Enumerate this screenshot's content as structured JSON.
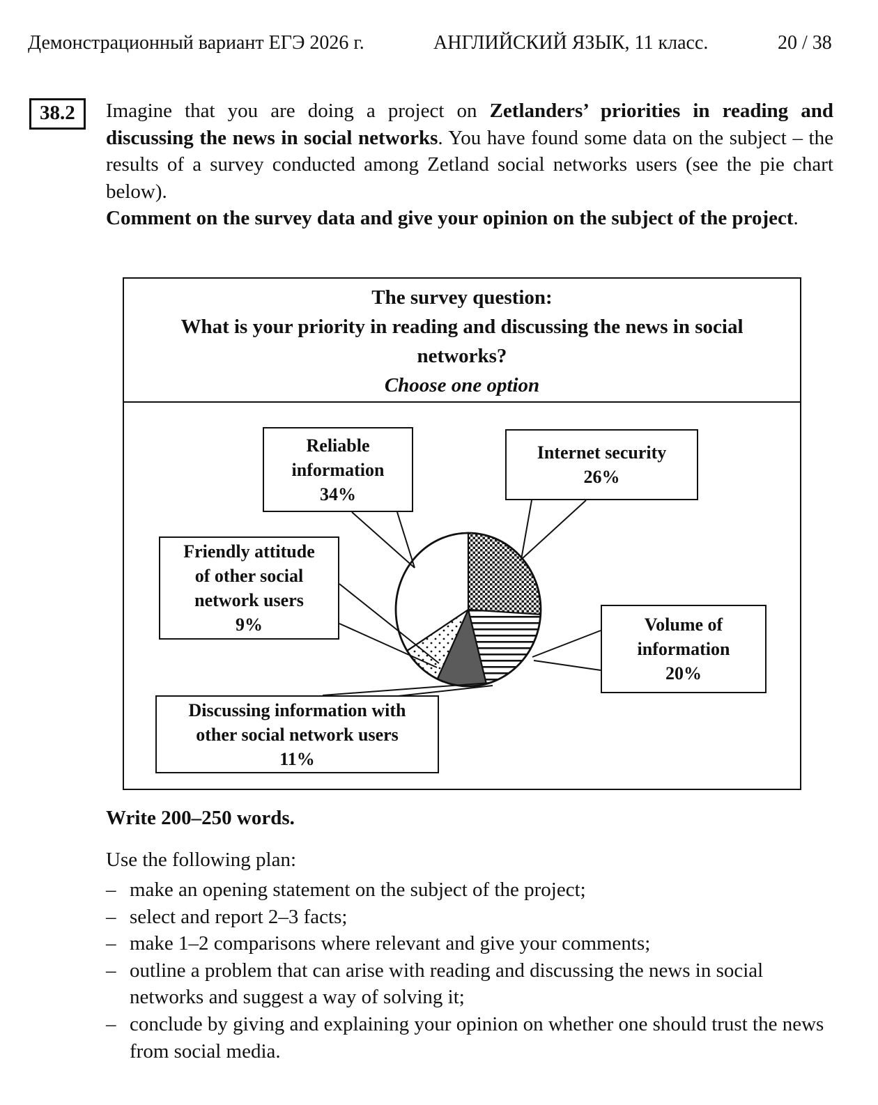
{
  "header": {
    "left": "Демонстрационный вариант ЕГЭ 2026 г.",
    "center": "АНГЛИЙСКИЙ ЯЗЫК, 11 класс.",
    "page": "20 / 38"
  },
  "task": {
    "number": "38.2",
    "intro": {
      "p1a": "Imagine that you are doing a project on ",
      "p1b": "Zetlanders’ priorities in reading and discussing the news in social networks",
      "p1c": ". You have found some data on the subject – the results of a survey conducted among Zetland social networks users (see the pie chart below).",
      "p2a": "Comment on the survey data and give your opinion on the subject of the project",
      "p2b": "."
    },
    "write_instruction": "Write 200–250 words.",
    "plan": {
      "lead": "Use the following plan:",
      "bullet": "–",
      "items": [
        "make an opening statement on the subject of the project;",
        "select and report 2–3 facts;",
        "make 1–2 comparisons where relevant and give your comments;",
        "outline a problem that can arise with reading and discussing the news in social networks and suggest a way of solving it;",
        "conclude by giving and explaining your opinion on whether one should trust the news from social media."
      ]
    }
  },
  "chart_data": {
    "type": "pie",
    "title": "The survey question:",
    "question": "What is your priority in reading and discussing the news in social networks?",
    "note": "Choose one option",
    "start_angle": "12 o'clock",
    "direction": "clockwise",
    "legend_position": "callout-boxes",
    "categories": [
      "Internet security",
      "Volume of information",
      "Discussing information with other social network users",
      "Friendly attitude of other social network users",
      "Reliable information"
    ],
    "values": [
      26,
      20,
      11,
      9,
      34
    ],
    "slices": [
      {
        "id": "internet-security",
        "label": "Internet security",
        "value": 26,
        "fill_style": "checkerboard"
      },
      {
        "id": "volume-of-information",
        "label": "Volume of information",
        "value": 20,
        "fill_style": "horizontal-stripes"
      },
      {
        "id": "discussing-information",
        "label": "Discussing information with other social network users",
        "value": 11,
        "fill_style": "solid-gray"
      },
      {
        "id": "friendly-attitude",
        "label": "Friendly attitude of other social network users",
        "value": 9,
        "fill_style": "dotted"
      },
      {
        "id": "reliable-information",
        "label": "Reliable information",
        "value": 34,
        "fill_style": "plain"
      }
    ],
    "colors": {
      "dark_gray": "#5b5b5b",
      "ink": "#111111"
    },
    "callouts": {
      "reliable": {
        "lines": [
          "Reliable",
          "information",
          "34%"
        ]
      },
      "internet": {
        "lines": [
          "Internet security",
          "26%"
        ]
      },
      "friendly": {
        "lines": [
          "Friendly attitude",
          "of other social",
          "network users",
          "9%"
        ]
      },
      "volume": {
        "lines": [
          "Volume of",
          "information",
          "20%"
        ]
      },
      "discussing": {
        "lines": [
          "Discussing information with",
          "other social network users",
          "11%"
        ]
      }
    }
  }
}
